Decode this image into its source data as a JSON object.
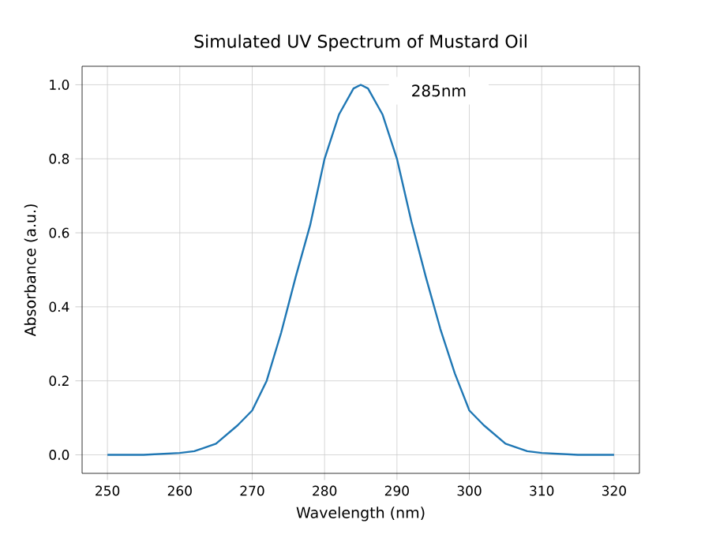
{
  "chart_data": {
    "type": "line",
    "title": "Simulated UV Spectrum of Mustard Oil",
    "xlabel": "Wavelength (nm)",
    "ylabel": "Absorbance (a.u.)",
    "x": [
      250,
      255,
      260,
      262,
      265,
      268,
      270,
      272,
      274,
      276,
      278,
      280,
      282,
      284,
      285,
      286,
      288,
      290,
      292,
      294,
      296,
      298,
      300,
      302,
      305,
      308,
      310,
      315,
      320
    ],
    "series": [
      {
        "color": "#1f77b4",
        "values": [
          0,
          0,
          0.005,
          0.01,
          0.03,
          0.08,
          0.12,
          0.2,
          0.33,
          0.48,
          0.62,
          0.8,
          0.92,
          0.99,
          1.0,
          0.99,
          0.92,
          0.8,
          0.63,
          0.48,
          0.34,
          0.22,
          0.12,
          0.08,
          0.03,
          0.01,
          0.005,
          0,
          0
        ]
      }
    ],
    "xlim": [
      246.5,
      323.5
    ],
    "ylim": [
      -0.05,
      1.05
    ],
    "xticks": [
      250,
      260,
      270,
      280,
      290,
      300,
      310,
      320
    ],
    "yticks": [
      {
        "value": 0,
        "label": "0.0"
      },
      0.2,
      0.4,
      0.6,
      0.8,
      {
        "value": 1,
        "label": "1.0"
      }
    ],
    "grid": true,
    "annotations": [
      "285nm"
    ]
  }
}
